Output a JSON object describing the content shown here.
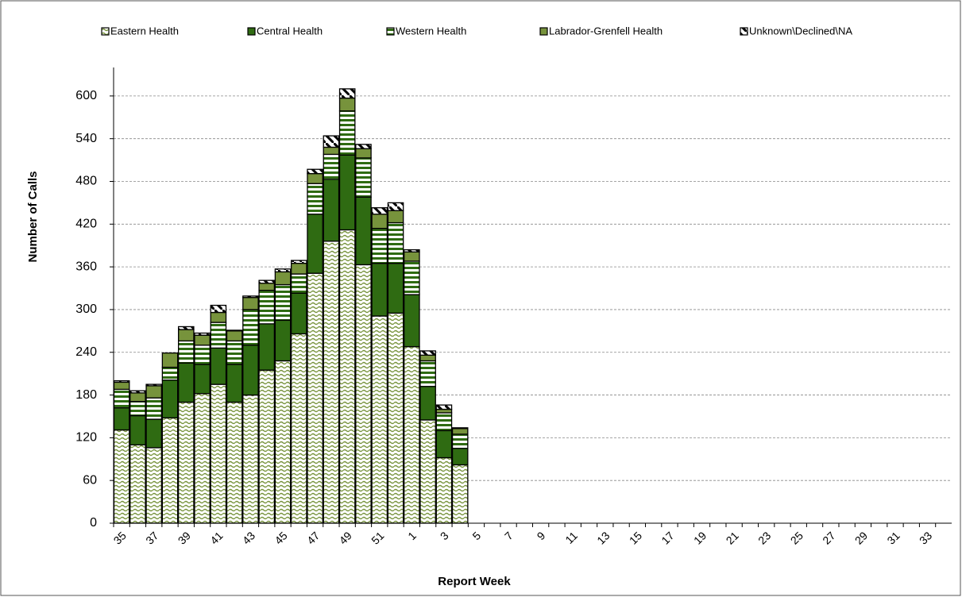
{
  "chart_data": {
    "type": "stacked_bar",
    "x_label": "Report Week",
    "y_label": "Number of Calls",
    "categories": [
      "35",
      null,
      "37",
      null,
      "39",
      null,
      "41",
      null,
      "43",
      null,
      "45",
      null,
      "47",
      null,
      "49",
      null,
      "51",
      null,
      "1",
      null,
      "3",
      null,
      "5",
      null,
      "7",
      null,
      "9",
      null,
      "11",
      null,
      "13",
      null,
      "15",
      null,
      "17",
      null,
      "19",
      null,
      "21",
      null,
      "23",
      null,
      "25",
      null,
      "27",
      null,
      "29",
      null,
      "31",
      null,
      "33",
      null
    ],
    "series": [
      {
        "name": "Eastern Health",
        "color": "#77933c",
        "pattern": "wave",
        "values": [
          131,
          110,
          106,
          148,
          170,
          182,
          195,
          170,
          180,
          215,
          228,
          266,
          351,
          396,
          412,
          363,
          291,
          295,
          248,
          145,
          92,
          82,
          null,
          null,
          null,
          null,
          null,
          null,
          null,
          null,
          null,
          null,
          null,
          null,
          null,
          null,
          null,
          null,
          null,
          null,
          null,
          null,
          null,
          null,
          null,
          null,
          null,
          null,
          null,
          null,
          null,
          null
        ]
      },
      {
        "name": "Central Health",
        "color": "#2f6b12",
        "pattern": "solid",
        "values": [
          31,
          41,
          40,
          53,
          55,
          41,
          51,
          53,
          70,
          65,
          57,
          57,
          83,
          87,
          105,
          95,
          74,
          70,
          73,
          47,
          38,
          23,
          null,
          null,
          null,
          null,
          null,
          null,
          null,
          null,
          null,
          null,
          null,
          null,
          null,
          null,
          null,
          null,
          null,
          null,
          null,
          null,
          null,
          null,
          null,
          null,
          null,
          null,
          null,
          null,
          null,
          null
        ]
      },
      {
        "name": "Western Health",
        "color": "#2f6b12",
        "pattern": "stripes",
        "values": [
          26,
          20,
          30,
          18,
          31,
          27,
          36,
          33,
          50,
          47,
          50,
          27,
          43,
          35,
          62,
          55,
          49,
          57,
          47,
          36,
          25,
          20,
          null,
          null,
          null,
          null,
          null,
          null,
          null,
          null,
          null,
          null,
          null,
          null,
          null,
          null,
          null,
          null,
          null,
          null,
          null,
          null,
          null,
          null,
          null,
          null,
          null,
          null,
          null,
          null,
          null,
          null
        ]
      },
      {
        "name": "Labrador-Grenfell Health",
        "color": "#77933c",
        "pattern": "solid",
        "values": [
          10,
          12,
          17,
          20,
          16,
          14,
          14,
          14,
          17,
          10,
          18,
          15,
          14,
          10,
          18,
          13,
          20,
          17,
          13,
          8,
          5,
          8,
          null,
          null,
          null,
          null,
          null,
          null,
          null,
          null,
          null,
          null,
          null,
          null,
          null,
          null,
          null,
          null,
          null,
          null,
          null,
          null,
          null,
          null,
          null,
          null,
          null,
          null,
          null,
          null,
          null,
          null
        ]
      },
      {
        "name": "Unknown\\Declined\\NA",
        "color": "#000000",
        "pattern": "diagonal",
        "values": [
          2,
          3,
          2,
          0,
          4,
          3,
          10,
          1,
          2,
          4,
          4,
          4,
          6,
          16,
          13,
          6,
          9,
          11,
          3,
          6,
          6,
          1,
          null,
          null,
          null,
          null,
          null,
          null,
          null,
          null,
          null,
          null,
          null,
          null,
          null,
          null,
          null,
          null,
          null,
          null,
          null,
          null,
          null,
          null,
          null,
          null,
          null,
          null,
          null,
          null,
          null,
          null
        ]
      }
    ],
    "ylim": [
      0,
      640
    ],
    "yticks": [
      0,
      60,
      120,
      180,
      240,
      300,
      360,
      420,
      480,
      540,
      600
    ],
    "grid": true
  }
}
